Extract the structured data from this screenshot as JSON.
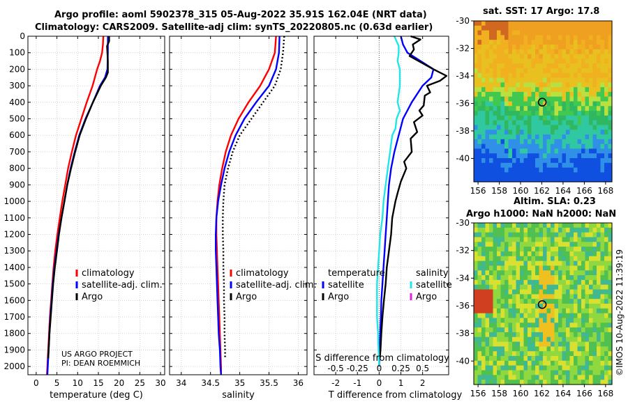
{
  "header": {
    "line1": "Argo profile: aoml 5902378_315 05-Aug-2022 35.91S 162.04E (NRT data)",
    "line2": "Climatology: CARS2009. Satellite-adj clim: synTS_20220805.nc (0.63d earlier)"
  },
  "right": {
    "sst_title": "sat. SST: 17 Argo: 17.8",
    "sla_title1": "Altim. SLA: 0.23",
    "sla_title2": "Argo h1000: NaN h2000: NaN",
    "credit": "©IMOS 10-Aug-2022 11:39:19"
  },
  "colors": {
    "climatology": "#ff0000",
    "satellite": "#0000ff",
    "argo": "#000000",
    "s_sat": "#22e6e6",
    "s_argo": "#e020e0"
  },
  "chart_data": [
    {
      "type": "line",
      "name": "temperature",
      "xlabel": "temperature (deg C)",
      "ylabel": "",
      "xlim": [
        -2,
        31
      ],
      "ylim": [
        0,
        2050
      ],
      "xticks": [
        0,
        5,
        10,
        15,
        20,
        25,
        30
      ],
      "yticks": [
        0,
        100,
        200,
        300,
        400,
        500,
        600,
        700,
        800,
        900,
        1000,
        1100,
        1200,
        1300,
        1400,
        1500,
        1600,
        1700,
        1800,
        1900,
        2000
      ],
      "legend": [
        "climatology",
        "satellite-adj. clim.",
        "Argo"
      ],
      "note1": "US ARGO PROJECT",
      "note2": "PI: DEAN ROEMMICH",
      "series": [
        {
          "name": "climatology",
          "color": "#ff0000",
          "dash": false,
          "points": [
            [
              16.2,
              0
            ],
            [
              16.1,
              50
            ],
            [
              15.9,
              100
            ],
            [
              15.4,
              150
            ],
            [
              14.7,
              200
            ],
            [
              13.6,
              300
            ],
            [
              12.2,
              400
            ],
            [
              10.9,
              500
            ],
            [
              9.6,
              600
            ],
            [
              8.6,
              700
            ],
            [
              7.7,
              800
            ],
            [
              7,
              900
            ],
            [
              6.3,
              1000
            ],
            [
              5.7,
              1100
            ],
            [
              5.1,
              1200
            ],
            [
              4.6,
              1300
            ],
            [
              4.2,
              1400
            ],
            [
              3.9,
              1500
            ],
            [
              3.6,
              1600
            ],
            [
              3.3,
              1700
            ],
            [
              3.1,
              1800
            ],
            [
              2.9,
              1900
            ],
            [
              2.7,
              2000
            ],
            [
              2.6,
              2050
            ]
          ]
        },
        {
          "name": "satellite-adj. clim.",
          "color": "#0000ff",
          "dash": false,
          "points": [
            [
              17.3,
              0
            ],
            [
              17.3,
              100
            ],
            [
              17.2,
              200
            ],
            [
              16.6,
              250
            ],
            [
              15.4,
              300
            ],
            [
              13.7,
              400
            ],
            [
              11.9,
              500
            ],
            [
              10.4,
              600
            ],
            [
              9.3,
              700
            ],
            [
              8.3,
              800
            ],
            [
              7.5,
              900
            ],
            [
              6.8,
              1000
            ],
            [
              6.1,
              1100
            ],
            [
              5.4,
              1200
            ],
            [
              4.9,
              1300
            ],
            [
              4.4,
              1400
            ],
            [
              4,
              1500
            ],
            [
              3.7,
              1600
            ],
            [
              3.4,
              1700
            ],
            [
              3.2,
              1800
            ],
            [
              3,
              1900
            ],
            [
              2.8,
              2000
            ],
            [
              2.7,
              2050
            ]
          ]
        },
        {
          "name": "Argo",
          "color": "#000000",
          "dash": false,
          "points": [
            [
              17.6,
              0
            ],
            [
              17.6,
              30
            ],
            [
              17.1,
              60
            ],
            [
              17.3,
              150
            ],
            [
              17.3,
              220
            ],
            [
              16.8,
              250
            ],
            [
              15.6,
              300
            ],
            [
              13.7,
              400
            ],
            [
              12.0,
              500
            ],
            [
              10.5,
              600
            ],
            [
              9.4,
              700
            ],
            [
              8.4,
              800
            ],
            [
              7.5,
              900
            ],
            [
              6.8,
              1000
            ],
            [
              6.1,
              1100
            ],
            [
              5.5,
              1200
            ],
            [
              5,
              1300
            ],
            [
              4.5,
              1400
            ],
            [
              4.1,
              1500
            ],
            [
              3.8,
              1600
            ],
            [
              3.5,
              1700
            ],
            [
              3.2,
              1800
            ],
            [
              3,
              1900
            ],
            [
              2.9,
              1950
            ]
          ]
        }
      ]
    },
    {
      "type": "line",
      "name": "salinity",
      "xlabel": "salinity",
      "ylabel": "",
      "xlim": [
        33.8,
        36.15
      ],
      "ylim": [
        0,
        2050
      ],
      "xticks": [
        34,
        34.5,
        35,
        35.5,
        36
      ],
      "legend": [
        "climatology",
        "satellite-adj. clim.",
        "Argo"
      ],
      "series": [
        {
          "name": "climatology",
          "color": "#ff0000",
          "dash": false,
          "points": [
            [
              35.62,
              0
            ],
            [
              35.6,
              100
            ],
            [
              35.5,
              200
            ],
            [
              35.35,
              300
            ],
            [
              35.15,
              400
            ],
            [
              34.98,
              500
            ],
            [
              34.85,
              600
            ],
            [
              34.76,
              700
            ],
            [
              34.7,
              800
            ],
            [
              34.65,
              900
            ],
            [
              34.62,
              1000
            ],
            [
              34.6,
              1100
            ],
            [
              34.6,
              1200
            ],
            [
              34.61,
              1300
            ],
            [
              34.62,
              1400
            ],
            [
              34.63,
              1500
            ],
            [
              34.64,
              1600
            ],
            [
              34.65,
              1700
            ],
            [
              34.66,
              1800
            ],
            [
              34.67,
              1900
            ],
            [
              34.68,
              2000
            ],
            [
              34.68,
              2050
            ]
          ]
        },
        {
          "name": "satellite-adj. clim.",
          "color": "#0000ff",
          "dash": false,
          "points": [
            [
              35.68,
              0
            ],
            [
              35.67,
              100
            ],
            [
              35.62,
              200
            ],
            [
              35.5,
              300
            ],
            [
              35.28,
              400
            ],
            [
              35.08,
              500
            ],
            [
              34.93,
              600
            ],
            [
              34.82,
              700
            ],
            [
              34.74,
              800
            ],
            [
              34.68,
              900
            ],
            [
              34.63,
              1000
            ],
            [
              34.6,
              1100
            ],
            [
              34.59,
              1200
            ],
            [
              34.59,
              1300
            ],
            [
              34.6,
              1400
            ],
            [
              34.61,
              1500
            ],
            [
              34.62,
              1600
            ],
            [
              34.63,
              1700
            ],
            [
              34.64,
              1800
            ],
            [
              34.66,
              1900
            ],
            [
              34.67,
              2000
            ],
            [
              34.68,
              2050
            ]
          ]
        },
        {
          "name": "Argo",
          "color": "#000000",
          "dash": true,
          "points": [
            [
              35.76,
              0
            ],
            [
              35.74,
              100
            ],
            [
              35.7,
              200
            ],
            [
              35.6,
              300
            ],
            [
              35.4,
              400
            ],
            [
              35.2,
              500
            ],
            [
              35.0,
              600
            ],
            [
              34.88,
              700
            ],
            [
              34.8,
              800
            ],
            [
              34.74,
              900
            ],
            [
              34.72,
              1000
            ],
            [
              34.71,
              1100
            ],
            [
              34.71,
              1200
            ],
            [
              34.72,
              1300
            ],
            [
              34.72,
              1400
            ],
            [
              34.73,
              1500
            ],
            [
              34.73,
              1600
            ],
            [
              34.74,
              1700
            ],
            [
              34.74,
              1800
            ],
            [
              34.75,
              1900
            ],
            [
              34.75,
              1950
            ]
          ]
        }
      ]
    },
    {
      "type": "line",
      "name": "difference",
      "xlabel": "T difference from climatology",
      "xlabel_top": "S difference from climatology",
      "xlim": [
        -3,
        3.2
      ],
      "ylim": [
        0,
        2050
      ],
      "xticks": [
        -2,
        -1,
        0,
        1,
        2
      ],
      "sticks_labels": [
        "-0.5",
        "-0.25",
        "0",
        "0.25",
        "0.5"
      ],
      "sticks_pos": [
        -2,
        -1,
        0,
        1,
        2
      ],
      "legend_t_title": "temperature",
      "legend_s_title": "salinity",
      "legend_t": [
        "satellite",
        "Argo"
      ],
      "legend_s": [
        "satellite",
        "Argo"
      ],
      "series": [
        {
          "name": "T satellite",
          "color": "#0000ff",
          "dash": false,
          "points": [
            [
              1,
              0
            ],
            [
              1.1,
              50
            ],
            [
              1.3,
              100
            ],
            [
              2.5,
              200
            ],
            [
              2.4,
              250
            ],
            [
              2.0,
              300
            ],
            [
              1.5,
              400
            ],
            [
              1.1,
              500
            ],
            [
              0.9,
              600
            ],
            [
              0.7,
              700
            ],
            [
              0.55,
              800
            ],
            [
              0.45,
              900
            ],
            [
              0.4,
              1000
            ],
            [
              0.35,
              1100
            ],
            [
              0.3,
              1200
            ],
            [
              0.25,
              1300
            ],
            [
              0.2,
              1400
            ],
            [
              0.15,
              1500
            ],
            [
              0.1,
              1600
            ],
            [
              0.08,
              1700
            ],
            [
              0.05,
              1800
            ],
            [
              0.02,
              1900
            ],
            [
              0,
              2000
            ]
          ]
        },
        {
          "name": "T Argo",
          "color": "#000000",
          "dash": false,
          "points": [
            [
              1.45,
              0
            ],
            [
              1.9,
              20
            ],
            [
              1.55,
              50
            ],
            [
              1.6,
              80
            ],
            [
              1.4,
              120
            ],
            [
              2.5,
              200
            ],
            [
              3.1,
              240
            ],
            [
              2.8,
              270
            ],
            [
              2.2,
              300
            ],
            [
              2.35,
              340
            ],
            [
              2.1,
              360
            ],
            [
              2.05,
              420
            ],
            [
              1.85,
              450
            ],
            [
              2.0,
              480
            ],
            [
              1.6,
              520
            ],
            [
              1.75,
              580
            ],
            [
              1.45,
              620
            ],
            [
              1.5,
              700
            ],
            [
              1.15,
              760
            ],
            [
              1.25,
              800
            ],
            [
              1.0,
              880
            ],
            [
              0.85,
              950
            ],
            [
              0.75,
              1000
            ],
            [
              0.6,
              1100
            ],
            [
              0.55,
              1200
            ],
            [
              0.45,
              1300
            ],
            [
              0.35,
              1400
            ],
            [
              0.3,
              1500
            ],
            [
              0.22,
              1600
            ],
            [
              0.15,
              1700
            ],
            [
              0.1,
              1800
            ],
            [
              0.06,
              1900
            ],
            [
              0.03,
              1950
            ]
          ]
        },
        {
          "name": "S satellite",
          "color": "#22e6e6",
          "dash": false,
          "points": [
            [
              0.7,
              0
            ],
            [
              0.9,
              60
            ],
            [
              0.9,
              100
            ],
            [
              0.85,
              150
            ],
            [
              0.95,
              200
            ],
            [
              0.95,
              300
            ],
            [
              0.85,
              400
            ],
            [
              0.95,
              450
            ],
            [
              0.8,
              500
            ],
            [
              0.75,
              560
            ],
            [
              0.6,
              600
            ],
            [
              0.5,
              700
            ],
            [
              0.4,
              800
            ],
            [
              0.3,
              900
            ],
            [
              0.2,
              1000
            ],
            [
              0.15,
              1100
            ],
            [
              0.05,
              1200
            ],
            [
              0,
              1300
            ],
            [
              -0.05,
              1400
            ],
            [
              -0.1,
              1500
            ],
            [
              -0.1,
              1600
            ],
            [
              -0.1,
              1700
            ],
            [
              -0.05,
              1800
            ],
            [
              -0.03,
              1900
            ],
            [
              0,
              2000
            ]
          ]
        }
      ]
    },
    {
      "type": "heatmap",
      "name": "sst_map",
      "title": "sat. SST: 17 Argo: 17.8",
      "xlim": [
        155.6,
        168.6
      ],
      "ylim": [
        -41.7,
        -30
      ],
      "xticks": [
        156,
        158,
        160,
        162,
        164,
        166,
        168
      ],
      "yticks": [
        -30,
        -32,
        -34,
        -36,
        -38,
        -40
      ],
      "marker": {
        "lon": 162.04,
        "lat": -35.91
      }
    },
    {
      "type": "heatmap",
      "name": "sla_map",
      "title": "Altim. SLA: 0.23",
      "xlim": [
        155.6,
        168.6
      ],
      "ylim": [
        -41.7,
        -30
      ],
      "xticks": [
        156,
        158,
        160,
        162,
        164,
        166,
        168
      ],
      "yticks": [
        -30,
        -32,
        -34,
        -36,
        -38,
        -40
      ],
      "marker": {
        "lon": 162.04,
        "lat": -35.91
      }
    }
  ]
}
